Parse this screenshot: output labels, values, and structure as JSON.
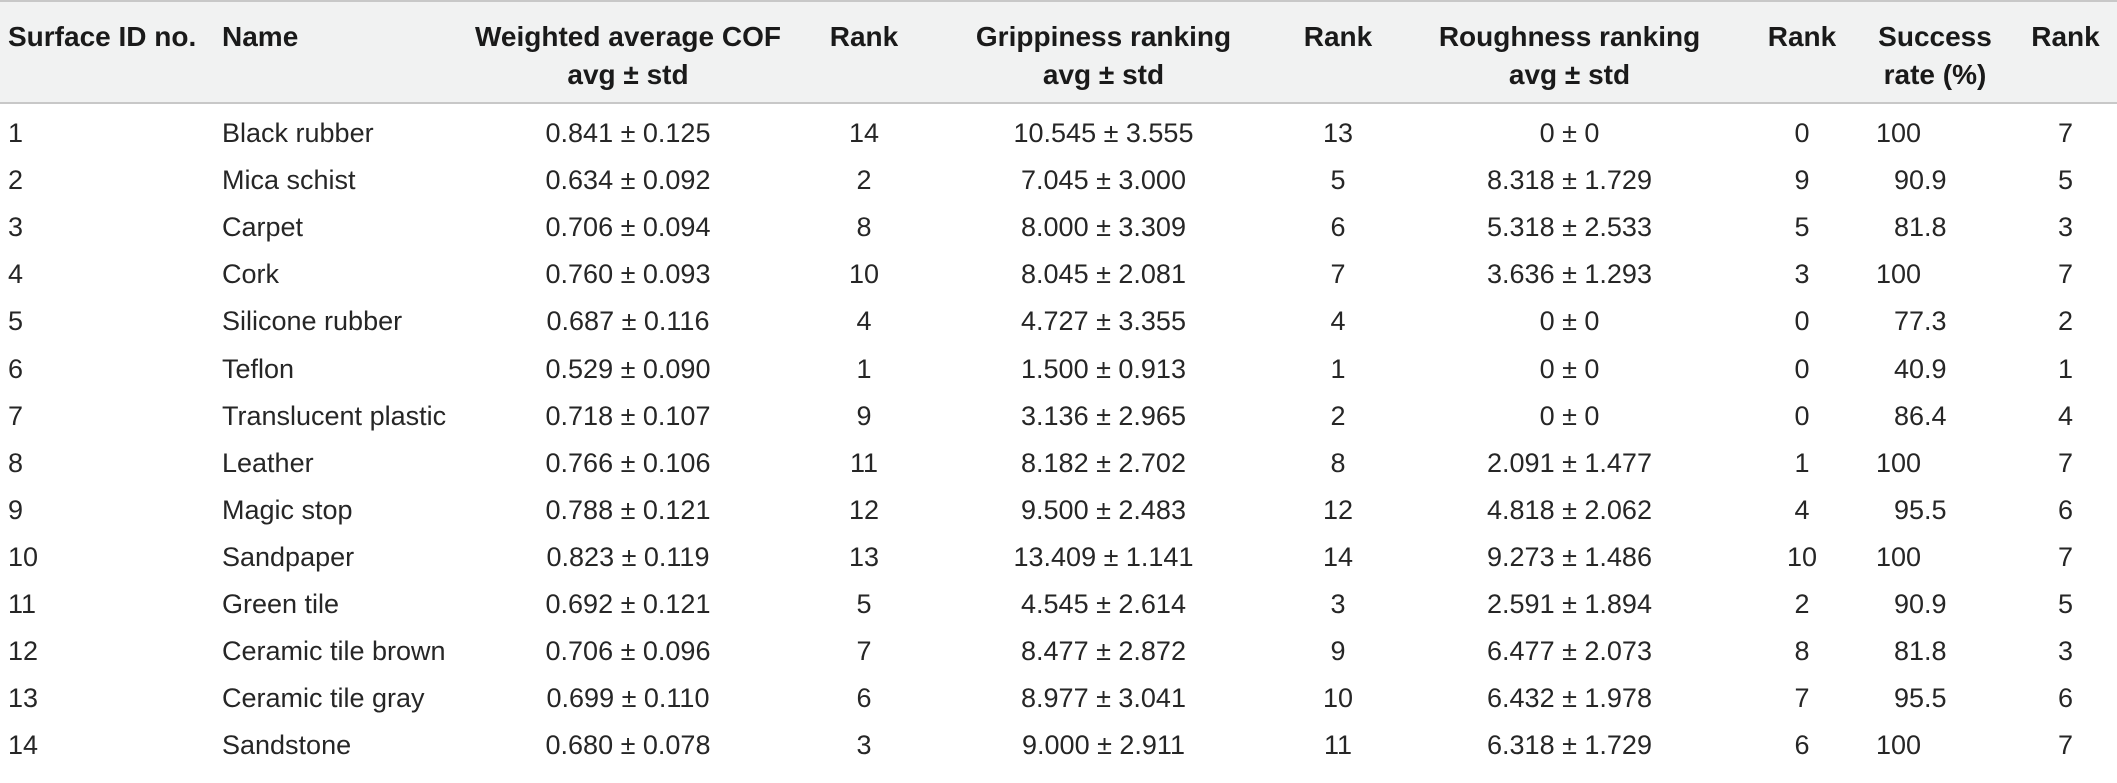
{
  "table": {
    "headers": {
      "surface_id": "Surface ID no.",
      "name": "Name",
      "cof_line1": "Weighted average COF",
      "cof_line2": "avg ± std",
      "rank1": "Rank",
      "grip_line1": "Grippiness ranking",
      "grip_line2": "avg ± std",
      "rank2": "Rank",
      "rough_line1": "Roughness ranking",
      "rough_line2": "avg ± std",
      "rank3": "Rank",
      "success_line1": "Success",
      "success_line2": "rate (%)",
      "rank4": "Rank"
    },
    "rows": [
      {
        "id": "1",
        "name": "Black rubber",
        "cof": "0.841 ± 0.125",
        "rank_cof": "14",
        "grip": "10.545 ± 3.555",
        "rank_grip": "13",
        "rough": "0 ± 0",
        "rank_rough": "0",
        "success": "100",
        "rank_success": "7"
      },
      {
        "id": "2",
        "name": "Mica schist",
        "cof": "0.634 ± 0.092",
        "rank_cof": "2",
        "grip": "7.045 ± 3.000",
        "rank_grip": "5",
        "rough": "8.318 ± 1.729",
        "rank_rough": "9",
        "success": "90.9",
        "rank_success": "5"
      },
      {
        "id": "3",
        "name": "Carpet",
        "cof": "0.706 ± 0.094",
        "rank_cof": "8",
        "grip": "8.000 ± 3.309",
        "rank_grip": "6",
        "rough": "5.318 ± 2.533",
        "rank_rough": "5",
        "success": "81.8",
        "rank_success": "3"
      },
      {
        "id": "4",
        "name": "Cork",
        "cof": "0.760 ± 0.093",
        "rank_cof": "10",
        "grip": "8.045 ± 2.081",
        "rank_grip": "7",
        "rough": "3.636 ± 1.293",
        "rank_rough": "3",
        "success": "100",
        "rank_success": "7"
      },
      {
        "id": "5",
        "name": "Silicone rubber",
        "cof": "0.687 ± 0.116",
        "rank_cof": "4",
        "grip": "4.727 ± 3.355",
        "rank_grip": "4",
        "rough": "0 ± 0",
        "rank_rough": "0",
        "success": "77.3",
        "rank_success": "2"
      },
      {
        "id": "6",
        "name": "Teflon",
        "cof": "0.529 ± 0.090",
        "rank_cof": "1",
        "grip": "1.500 ± 0.913",
        "rank_grip": "1",
        "rough": "0 ± 0",
        "rank_rough": "0",
        "success": "40.9",
        "rank_success": "1"
      },
      {
        "id": "7",
        "name": "Translucent plastic",
        "cof": "0.718 ± 0.107",
        "rank_cof": "9",
        "grip": "3.136 ± 2.965",
        "rank_grip": "2",
        "rough": "0 ± 0",
        "rank_rough": "0",
        "success": "86.4",
        "rank_success": "4"
      },
      {
        "id": "8",
        "name": "Leather",
        "cof": "0.766 ± 0.106",
        "rank_cof": "11",
        "grip": "8.182 ± 2.702",
        "rank_grip": "8",
        "rough": "2.091 ± 1.477",
        "rank_rough": "1",
        "success": "100",
        "rank_success": "7"
      },
      {
        "id": "9",
        "name": "Magic stop",
        "cof": "0.788 ± 0.121",
        "rank_cof": "12",
        "grip": "9.500 ± 2.483",
        "rank_grip": "12",
        "rough": "4.818 ± 2.062",
        "rank_rough": "4",
        "success": "95.5",
        "rank_success": "6"
      },
      {
        "id": "10",
        "name": "Sandpaper",
        "cof": "0.823 ± 0.119",
        "rank_cof": "13",
        "grip": "13.409 ± 1.141",
        "rank_grip": "14",
        "rough": "9.273 ± 1.486",
        "rank_rough": "10",
        "success": "100",
        "rank_success": "7"
      },
      {
        "id": "11",
        "name": "Green tile",
        "cof": "0.692 ± 0.121",
        "rank_cof": "5",
        "grip": "4.545 ± 2.614",
        "rank_grip": "3",
        "rough": "2.591 ± 1.894",
        "rank_rough": "2",
        "success": "90.9",
        "rank_success": "5"
      },
      {
        "id": "12",
        "name": "Ceramic tile brown",
        "cof": "0.706 ± 0.096",
        "rank_cof": "7",
        "grip": "8.477 ± 2.872",
        "rank_grip": "9",
        "rough": "6.477 ± 2.073",
        "rank_rough": "8",
        "success": "81.8",
        "rank_success": "3"
      },
      {
        "id": "13",
        "name": "Ceramic tile gray",
        "cof": "0.699 ± 0.110",
        "rank_cof": "6",
        "grip": "8.977 ± 3.041",
        "rank_grip": "10",
        "rough": "6.432 ± 1.978",
        "rank_rough": "7",
        "success": "95.5",
        "rank_success": "6"
      },
      {
        "id": "14",
        "name": "Sandstone",
        "cof": "0.680 ± 0.078",
        "rank_cof": "3",
        "grip": "9.000 ± 2.911",
        "rank_grip": "11",
        "rough": "6.318 ± 1.729",
        "rank_rough": "6",
        "success": "100",
        "rank_success": "7"
      }
    ]
  }
}
